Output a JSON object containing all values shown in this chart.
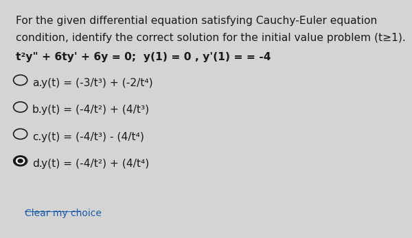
{
  "background_color": "#d4d4d4",
  "question_text_line1": "For the given differential equation satisfying Cauchy-Euler equation",
  "question_text_line2": "condition, identify the correct solution for the initial value problem (t≥1).",
  "equation_line": "t²y\" + 6ty' + 6y = 0;  y(1) = 0 , y'(1) = = -4",
  "options": [
    {
      "label": "a.",
      "text": "y(t) = (-3/t³) + (-2/t⁴)",
      "selected": false
    },
    {
      "label": "b.",
      "text": "y(t) = (-4/t²) + (4/t³)",
      "selected": false
    },
    {
      "label": "c.",
      "text": "y(t) = (-4/t³) - (4/t⁴)",
      "selected": false
    },
    {
      "label": "d.",
      "text": "y(t) = (-4/t²) + (4/t⁴)",
      "selected": true
    }
  ],
  "clear_text": "Clear my choice",
  "font_size_question": 11.2,
  "font_size_equation": 11.2,
  "font_size_options": 11.2,
  "font_size_clear": 10,
  "text_color": "#1a1a1a",
  "selected_circle_color": "#1a1a1a",
  "unselected_circle_color": "#1a1a1a",
  "clear_color": "#1a5aab"
}
